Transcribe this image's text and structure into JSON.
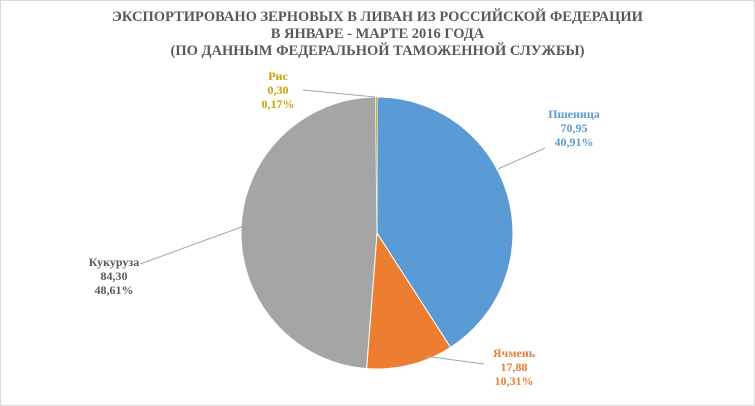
{
  "chart_data": {
    "type": "pie",
    "title": [
      "ЭКСПОРТИРОВАНО ЗЕРНОВЫХ В ЛИВАН ИЗ РОССИЙСКОЙ ФЕДЕРАЦИИ",
      "В ЯНВАРЕ - МАРТЕ 2016 ГОДА",
      "(ПО ДАННЫМ ФЕДЕРАЛЬНОЙ ТАМОЖЕННОЙ СЛУЖБЫ)"
    ],
    "slices": [
      {
        "name": "Пшеница",
        "value": 70.95,
        "value_label": "70,95",
        "percent_label": "40,91%",
        "color": "#5b9bd5"
      },
      {
        "name": "Ячмень",
        "value": 17.88,
        "value_label": "17,88",
        "percent_label": "10,31%",
        "color": "#ed7d31"
      },
      {
        "name": "Кукуруза",
        "value": 84.3,
        "value_label": "84,30",
        "percent_label": "48,61%",
        "color": "#a5a5a5"
      },
      {
        "name": "Рис",
        "value": 0.3,
        "value_label": "0,30",
        "percent_label": "0,17%",
        "color": "#c9a100"
      }
    ],
    "start_angle": "12 o'clock",
    "direction": "clockwise",
    "legend": "none"
  }
}
